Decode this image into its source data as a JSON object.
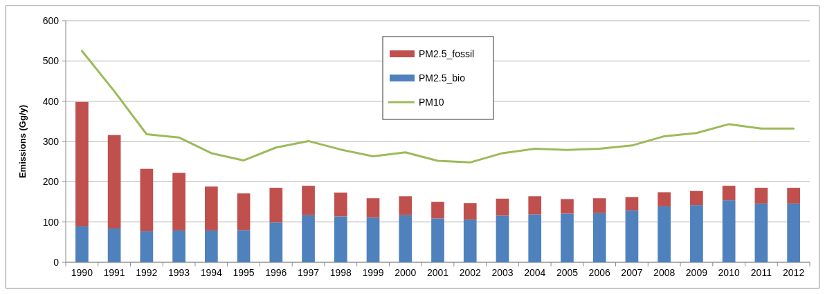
{
  "chart_data": {
    "type": "bar",
    "stacked": true,
    "ylabel": "Emissions (Gg/y)",
    "categories": [
      "1990",
      "1991",
      "1992",
      "1993",
      "1994",
      "1995",
      "1996",
      "1997",
      "1998",
      "1999",
      "2000",
      "2001",
      "2002",
      "2003",
      "2004",
      "2005",
      "2006",
      "2007",
      "2008",
      "2009",
      "2010",
      "2011",
      "2012"
    ],
    "series": [
      {
        "name": "PM2.5_bio",
        "color": "#4f81bd",
        "values": [
          89,
          84,
          77,
          79,
          79,
          80,
          99,
          117,
          114,
          111,
          117,
          109,
          106,
          116,
          119,
          121,
          122,
          129,
          139,
          142,
          154,
          146,
          146
        ]
      },
      {
        "name": "PM2.5_fossil",
        "color": "#c0504d",
        "values": [
          309,
          232,
          155,
          143,
          109,
          91,
          86,
          73,
          59,
          48,
          47,
          41,
          41,
          42,
          45,
          36,
          37,
          33,
          35,
          35,
          36,
          39,
          39
        ]
      },
      {
        "name": "PM10",
        "type": "line",
        "color": "#9bbb59",
        "values": [
          525,
          425,
          318,
          310,
          271,
          253,
          285,
          301,
          280,
          263,
          273,
          252,
          248,
          271,
          282,
          279,
          282,
          290,
          313,
          321,
          343,
          332,
          332
        ]
      }
    ],
    "ylim": [
      0,
      600
    ],
    "yticks": [
      0,
      100,
      200,
      300,
      400,
      500,
      600
    ],
    "grid": "y",
    "legend": "top"
  }
}
